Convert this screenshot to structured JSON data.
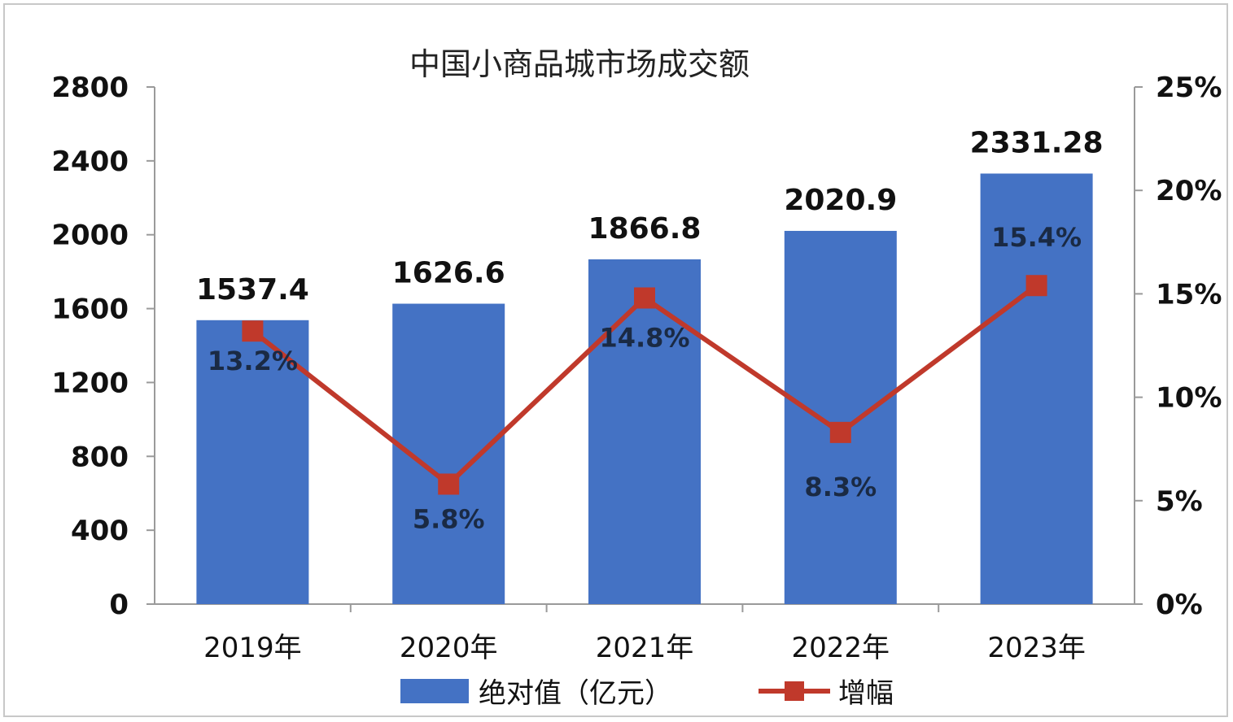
{
  "chart_data": {
    "type": "bar",
    "title": "中国小商品城市场成交额",
    "categories": [
      "2019年",
      "2020年",
      "2021年",
      "2022年",
      "2023年"
    ],
    "series": [
      {
        "name": "绝对值（亿元）",
        "type": "bar",
        "axis": "left",
        "values": [
          1537.4,
          1626.6,
          1866.8,
          2020.9,
          2331.28
        ],
        "labels": [
          "1537.4",
          "1626.6",
          "1866.8",
          "2020.9",
          "2331.28"
        ],
        "color": "#4472c4"
      },
      {
        "name": "增幅",
        "type": "line",
        "axis": "right",
        "values": [
          13.2,
          5.8,
          14.8,
          8.3,
          15.4
        ],
        "labels": [
          "13.2%",
          "5.8%",
          "14.8%",
          "8.3%",
          "15.4%"
        ],
        "color": "#c0392b"
      }
    ],
    "y_left": {
      "min": 0,
      "max": 2800,
      "ticks": [
        "0",
        "400",
        "800",
        "1200",
        "1600",
        "2000",
        "2400",
        "2800"
      ]
    },
    "y_right": {
      "min": 0,
      "max": 25,
      "ticks": [
        "0%",
        "5%",
        "10%",
        "15%",
        "20%",
        "25%"
      ]
    },
    "legend_position": "bottom",
    "grid": false
  }
}
